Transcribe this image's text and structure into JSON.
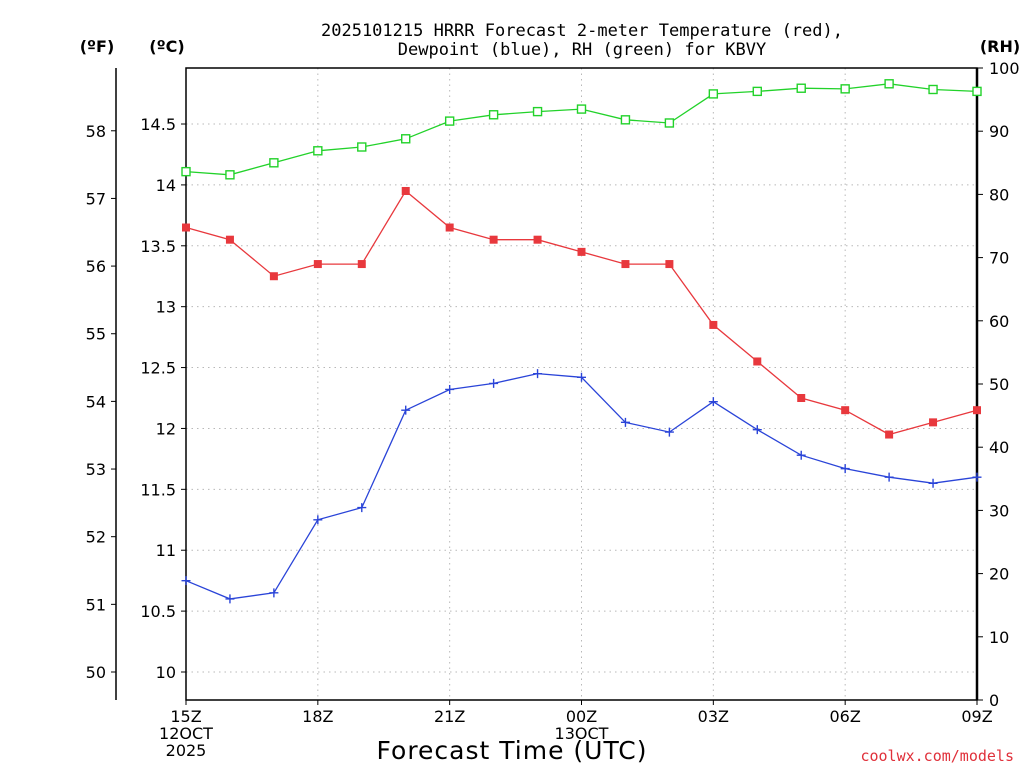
{
  "chart_data": {
    "type": "line",
    "title_lines": [
      "2025101215 HRRR Forecast 2-meter Temperature (red),",
      "Dewpoint (blue), RH (green) for KBVY"
    ],
    "xlabel": "Forecast Time (UTC)",
    "credit": "coolwx.com/models",
    "units": {
      "fahrenheit": "(ºF)",
      "celsius": "(ºC)",
      "rh": "(RH)"
    },
    "x_hours": [
      0,
      1,
      2,
      3,
      4,
      5,
      6,
      7,
      8,
      9,
      10,
      11,
      12,
      13,
      14,
      15,
      16,
      17,
      18
    ],
    "x_ticks": [
      {
        "hour": 0,
        "lines": [
          "15Z",
          "12OCT",
          "2025"
        ]
      },
      {
        "hour": 3,
        "lines": [
          "18Z"
        ]
      },
      {
        "hour": 6,
        "lines": [
          "21Z"
        ]
      },
      {
        "hour": 9,
        "lines": [
          "00Z",
          "13OCT"
        ]
      },
      {
        "hour": 12,
        "lines": [
          "03Z"
        ]
      },
      {
        "hour": 15,
        "lines": [
          "06Z"
        ]
      },
      {
        "hour": 18,
        "lines": [
          "09Z"
        ]
      }
    ],
    "celsius_axis": {
      "range": [
        9.77,
        14.96
      ],
      "ticks": [
        "10",
        "10.5",
        "11",
        "11.5",
        "12",
        "12.5",
        "13",
        "13.5",
        "14",
        "14.5"
      ]
    },
    "fahrenheit_axis": {
      "ticks": [
        "50",
        "51",
        "52",
        "53",
        "54",
        "55",
        "56",
        "57",
        "58"
      ]
    },
    "rh_axis": {
      "range": [
        0,
        100
      ],
      "ticks": [
        "0",
        "10",
        "20",
        "30",
        "40",
        "50",
        "60",
        "70",
        "80",
        "90",
        "100"
      ]
    },
    "series": [
      {
        "name": "Temperature",
        "axis": "celsius",
        "color": "#e8383d",
        "marker": "filled-square",
        "values": [
          13.65,
          13.55,
          13.25,
          13.35,
          13.35,
          13.95,
          13.65,
          13.55,
          13.55,
          13.45,
          13.35,
          13.35,
          12.85,
          12.55,
          12.25,
          12.15,
          11.95,
          12.05,
          12.15
        ]
      },
      {
        "name": "Dewpoint",
        "axis": "celsius",
        "color": "#2a44d8",
        "marker": "plus",
        "values": [
          10.75,
          10.6,
          10.65,
          11.25,
          11.35,
          12.15,
          12.32,
          12.37,
          12.45,
          12.42,
          12.05,
          11.97,
          12.22,
          11.99,
          11.78,
          11.67,
          11.6,
          11.55,
          11.6
        ]
      },
      {
        "name": "RH",
        "axis": "rh",
        "color": "#22d22a",
        "marker": "open-square",
        "values": [
          83.6,
          83.1,
          85.0,
          86.9,
          87.5,
          88.8,
          91.6,
          92.6,
          93.1,
          93.5,
          91.8,
          91.3,
          95.9,
          96.3,
          96.8,
          96.7,
          97.5,
          96.6,
          96.3
        ]
      }
    ],
    "grid": true
  }
}
